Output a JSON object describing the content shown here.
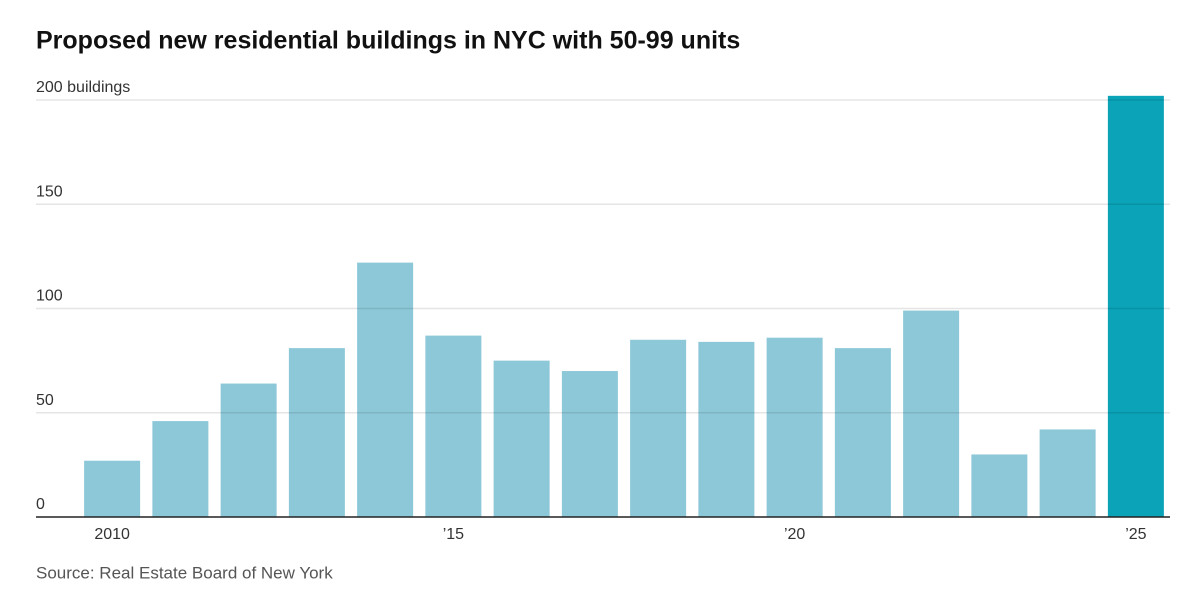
{
  "chart_data": {
    "type": "bar",
    "title": "Proposed new residential buildings in NYC with 50-99 units",
    "source": "Source: Real Estate Board of New York",
    "categories": [
      "2010",
      null,
      null,
      null,
      null,
      "’15",
      null,
      null,
      null,
      null,
      "’20",
      null,
      null,
      null,
      null,
      "’25"
    ],
    "values": [
      27,
      46,
      64,
      81,
      122,
      87,
      75,
      70,
      85,
      84,
      86,
      81,
      99,
      30,
      42,
      202
    ],
    "colors": [
      "#8dc8d8",
      "#8dc8d8",
      "#8dc8d8",
      "#8dc8d8",
      "#8dc8d8",
      "#8dc8d8",
      "#8dc8d8",
      "#8dc8d8",
      "#8dc8d8",
      "#8dc8d8",
      "#8dc8d8",
      "#8dc8d8",
      "#8dc8d8",
      "#8dc8d8",
      "#8dc8d8",
      "#0aa3b8"
    ],
    "ylim": [
      0,
      200
    ],
    "yticks": [
      0,
      50,
      100,
      150,
      {
        "value": 200,
        "label": "200 buildings"
      }
    ],
    "grid": true
  }
}
